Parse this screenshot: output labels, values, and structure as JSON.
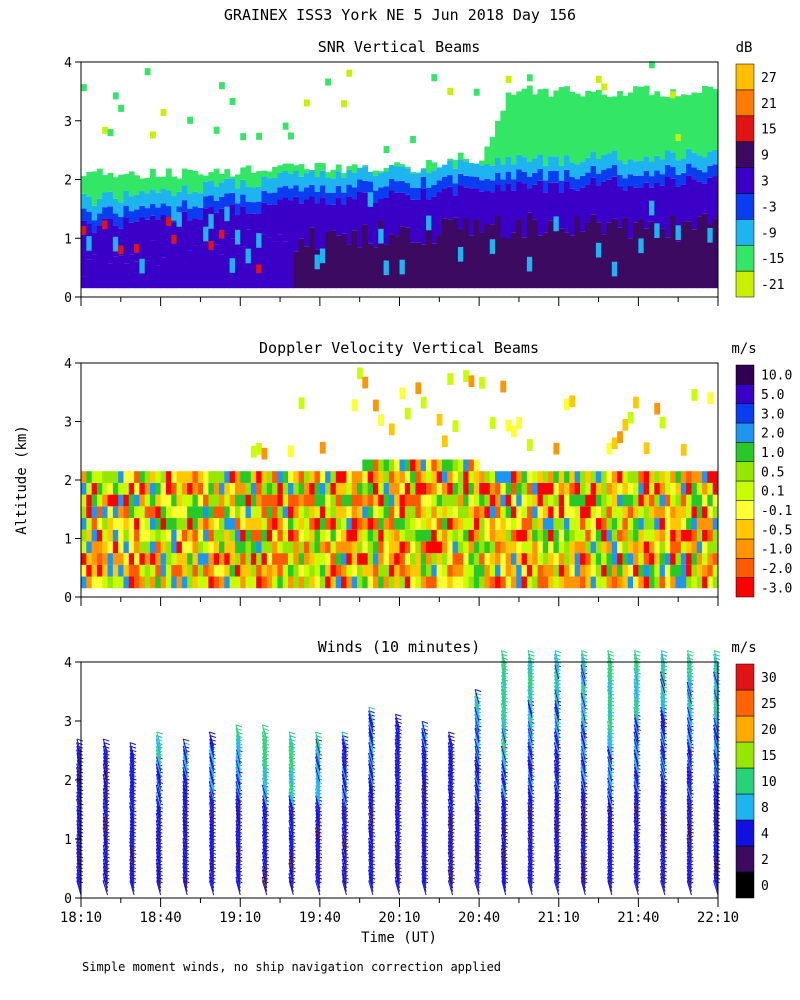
{
  "page": {
    "title": "GRAINEX ISS3 York NE   5 Jun 2018 Day 156",
    "ylabel": "Altitude (km)",
    "xlabel": "Time (UT)",
    "footnote": "Simple moment winds, no ship navigation correction applied"
  },
  "colors": {
    "snr": [
      "#c8f000",
      "#33e666",
      "#1eb4f0",
      "#0a3cf0",
      "#3a00c8",
      "#3c0a60",
      "#e01414",
      "#ff7a00",
      "#ffbe00"
    ],
    "doppler": [
      "#ff0000",
      "#ff5a00",
      "#ff9600",
      "#ffc800",
      "#ffff32",
      "#c8ff00",
      "#96e600",
      "#28c828",
      "#1e96f0",
      "#0a3cf0",
      "#3a00c8",
      "#320050"
    ],
    "winds": [
      "#000000",
      "#3c0a60",
      "#1010e0",
      "#1eb4f0",
      "#28d278",
      "#96e600",
      "#ffaa00",
      "#ff6400",
      "#e01414"
    ]
  },
  "chart_data": [
    {
      "type": "heatmap",
      "title": "SNR Vertical Beams",
      "units": "dB",
      "ylim": [
        0,
        4
      ],
      "yticks": [
        "0",
        "1",
        "2",
        "3",
        "4"
      ],
      "xlim_min": [
        0,
        240
      ],
      "colorbar_labels": [
        "-21",
        "-15",
        "-9",
        "-3",
        "3",
        "9",
        "15",
        "21",
        "27"
      ],
      "profile": {
        "time_min": [
          0,
          30,
          60,
          90,
          120,
          150,
          160,
          180,
          210,
          240
        ],
        "strong_top_km": [
          0.6,
          0.8,
          0.9,
          1.0,
          1.1,
          1.2,
          1.2,
          1.2,
          1.2,
          1.2
        ],
        "mid_top_km": [
          1.2,
          1.3,
          1.5,
          1.65,
          1.75,
          1.85,
          1.9,
          1.9,
          1.95,
          2.0
        ],
        "cloud_top_km": [
          2.1,
          2.1,
          2.15,
          2.2,
          2.2,
          2.3,
          3.5,
          3.5,
          3.5,
          3.5
        ]
      }
    },
    {
      "type": "heatmap",
      "title": "Doppler Velocity Vertical Beams",
      "units": "m/s",
      "ylim": [
        0,
        4
      ],
      "yticks": [
        "0",
        "1",
        "2",
        "3",
        "4"
      ],
      "xlim_min": [
        0,
        240
      ],
      "colorbar_labels": [
        "-3.0",
        "-2.0",
        "-1.0",
        "-0.5",
        "-0.1",
        "0.1",
        "0.5",
        "1.0",
        "2.0",
        "3.0",
        "5.0",
        "10.0"
      ],
      "profile": {
        "time_min": [
          0,
          60,
          90,
          120,
          150,
          160,
          200,
          240
        ],
        "layer_top_km": [
          1.95,
          2.0,
          2.1,
          2.2,
          2.15,
          2.15,
          2.1,
          2.0
        ],
        "upper_layer_top_km": [
          2.2,
          2.2,
          3.8,
          3.8,
          3.8,
          3.5,
          3.5,
          3.5
        ]
      }
    },
    {
      "type": "barbs",
      "title": "Winds (10 minutes)",
      "units": "m/s",
      "ylim": [
        0,
        4
      ],
      "yticks": [
        "0",
        "1",
        "2",
        "3",
        "4"
      ],
      "xlim_min": [
        0,
        240
      ],
      "colorbar_labels": [
        "0",
        "2",
        "4",
        "8",
        "10",
        "15",
        "20",
        "25",
        "30"
      ],
      "profile_times_min": [
        0,
        10,
        20,
        30,
        40,
        50,
        60,
        70,
        80,
        90,
        100,
        110,
        120,
        130,
        140,
        150,
        160,
        170,
        180,
        190,
        200,
        210,
        220,
        230,
        240
      ],
      "profile_top_km": [
        2.5,
        2.5,
        2.4,
        2.6,
        2.5,
        2.6,
        2.7,
        2.7,
        2.6,
        2.6,
        2.6,
        3.0,
        2.9,
        2.8,
        2.6,
        3.3,
        4.0,
        4.0,
        4.0,
        4.0,
        4.0,
        4.0,
        4.0,
        4.0,
        4.0
      ],
      "speed_levels_ms": [
        6,
        8,
        9,
        12,
        10,
        11,
        12,
        14,
        14,
        12,
        10,
        10,
        9,
        8,
        8,
        10,
        12,
        11,
        10,
        10,
        12,
        11,
        10,
        10,
        10
      ]
    }
  ],
  "xaxis": {
    "ticks": [
      "18:10",
      "18:40",
      "19:10",
      "19:40",
      "20:10",
      "20:40",
      "21:10",
      "21:40",
      "22:10"
    ],
    "tick_minutes": [
      0,
      30,
      60,
      90,
      120,
      150,
      180,
      210,
      240
    ]
  }
}
